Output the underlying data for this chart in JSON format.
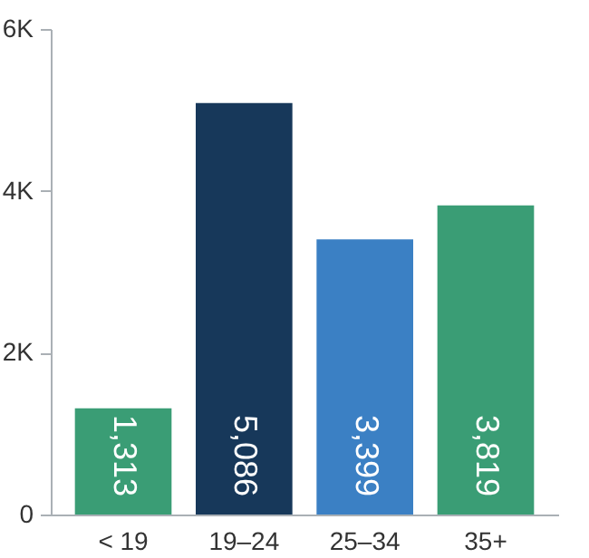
{
  "chart_data": {
    "type": "bar",
    "categories": [
      "< 19",
      "19–24",
      "25–34",
      "35+"
    ],
    "values": [
      1313,
      5086,
      3399,
      3819
    ],
    "colors": [
      "#3a9d75",
      "#17385a",
      "#3b80c4",
      "#3a9d75"
    ],
    "value_labels": [
      "1,313",
      "5,086",
      "3,399",
      "3,819"
    ],
    "ylim": [
      0,
      6000
    ],
    "yticks": [
      0,
      {
        "value": 2000,
        "label": "2K"
      },
      {
        "value": 4000,
        "label": "4K"
      },
      {
        "value": 6000,
        "label": "6K"
      }
    ],
    "grid": false
  }
}
